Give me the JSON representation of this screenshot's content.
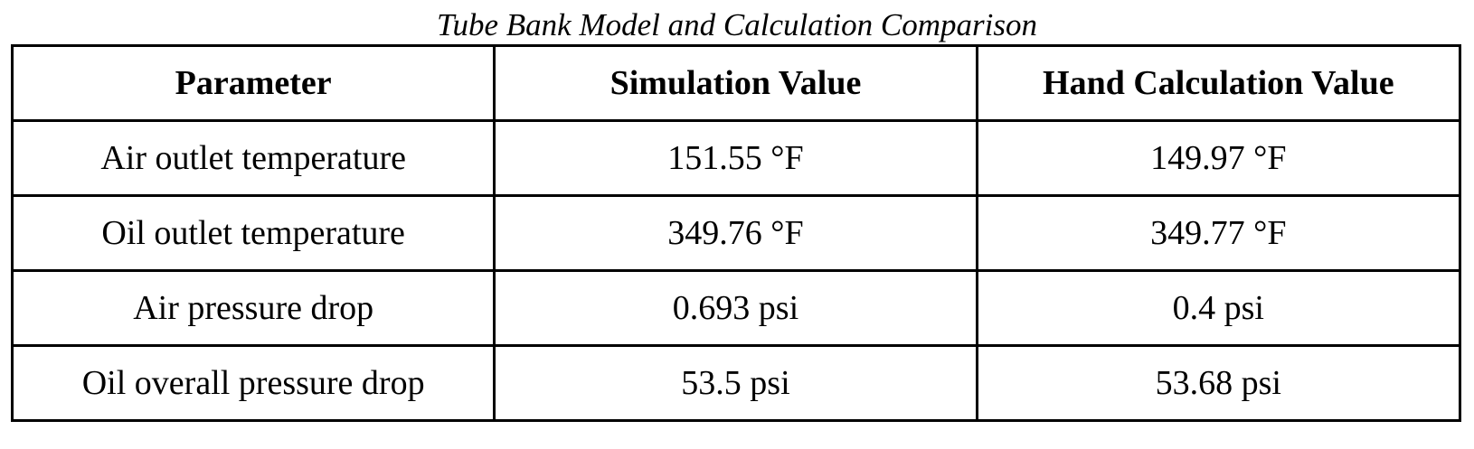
{
  "caption": "Tube Bank Model and Calculation Comparison",
  "columns": [
    "Parameter",
    "Simulation Value",
    "Hand Calculation Value"
  ],
  "rows": [
    [
      "Air outlet temperature",
      "151.55 °F",
      "149.97 °F"
    ],
    [
      "Oil outlet temperature",
      "349.76 °F",
      "349.77 °F"
    ],
    [
      "Air pressure drop",
      "0.693 psi",
      "0.4 psi"
    ],
    [
      "Oil overall pressure drop",
      "53.5 psi",
      "53.68 psi"
    ]
  ]
}
